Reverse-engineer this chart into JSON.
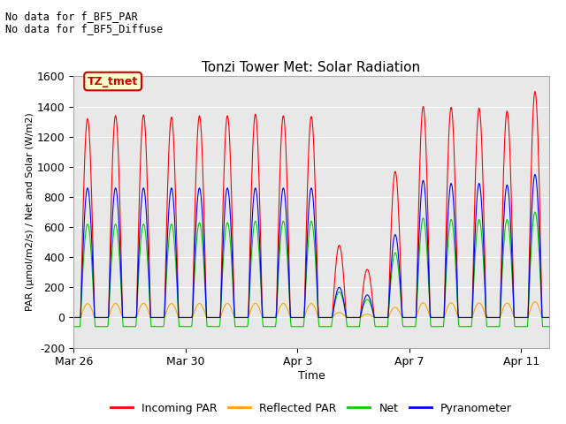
{
  "title": "Tonzi Tower Met: Solar Radiation",
  "xlabel": "Time",
  "ylabel": "PAR (μmol/m2/s) / Net and Solar (W/m2)",
  "ylim": [
    -200,
    1600
  ],
  "yticks": [
    -200,
    0,
    200,
    400,
    600,
    800,
    1000,
    1200,
    1400,
    1600
  ],
  "annotation_line1": "No data for f_BF5_PAR",
  "annotation_line2": "No data for f_BF5_Diffuse",
  "legend_label": "TZ_tmet",
  "legend_entries": [
    "Incoming PAR",
    "Reflected PAR",
    "Net",
    "Pyranometer"
  ],
  "legend_colors": [
    "#ff0000",
    "#ffa500",
    "#00cc00",
    "#0000ff"
  ],
  "x_tick_labels": [
    "Mar 26",
    "Mar 30",
    "Apr 3",
    "Apr 7",
    "Apr 11"
  ],
  "x_tick_positions": [
    0,
    4,
    8,
    12,
    16
  ],
  "plot_bg_color": "#e8e8e8",
  "fig_bg_color": "#ffffff",
  "total_days": 17,
  "colors": {
    "incoming": "#ff0000",
    "reflected": "#ffa500",
    "net": "#00cc00",
    "pyranometer": "#0000ff"
  },
  "incoming_peaks": [
    1320,
    1340,
    1345,
    1330,
    1340,
    1340,
    1350,
    1340,
    1335,
    480,
    320,
    970,
    1400,
    1395,
    1390,
    1370,
    1500
  ],
  "pyr_peaks": [
    860,
    860,
    860,
    860,
    860,
    860,
    860,
    860,
    860,
    200,
    150,
    550,
    910,
    890,
    890,
    880,
    950
  ],
  "net_peaks": [
    620,
    620,
    620,
    620,
    630,
    630,
    640,
    640,
    640,
    170,
    120,
    430,
    660,
    650,
    650,
    650,
    700
  ],
  "night_net": -60,
  "samples_per_day": 48
}
